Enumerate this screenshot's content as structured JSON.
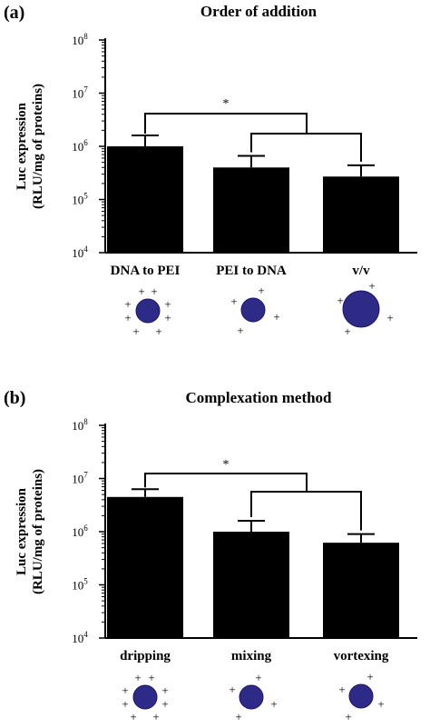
{
  "chart_data": [
    {
      "type": "bar",
      "panel": "(a)",
      "title": "Order of addition",
      "ylabel_line1": "Luc expression",
      "ylabel_line2": "(RLU/mg of proteins)",
      "yscale": "log",
      "ylim": [
        10000,
        100000000
      ],
      "yticks": [
        {
          "base": "10",
          "exp": "4"
        },
        {
          "base": "10",
          "exp": "5"
        },
        {
          "base": "10",
          "exp": "6"
        },
        {
          "base": "10",
          "exp": "7"
        },
        {
          "base": "10",
          "exp": "8"
        }
      ],
      "categories": [
        "DNA to PEI",
        "PEI to DNA",
        "v/v"
      ],
      "values": [
        1000000,
        400000,
        270000
      ],
      "errors_upper": [
        1600000,
        660000,
        440000
      ],
      "significance": "*",
      "particle_size": [
        "medium",
        "small",
        "large"
      ],
      "plus_sign": "+"
    },
    {
      "type": "bar",
      "panel": "(b)",
      "title": "Complexation method",
      "ylabel_line1": "Luc expression",
      "ylabel_line2": "(RLU/mg of proteins)",
      "yscale": "log",
      "ylim": [
        10000,
        100000000
      ],
      "yticks": [
        {
          "base": "10",
          "exp": "4"
        },
        {
          "base": "10",
          "exp": "5"
        },
        {
          "base": "10",
          "exp": "6"
        },
        {
          "base": "10",
          "exp": "7"
        },
        {
          "base": "10",
          "exp": "8"
        }
      ],
      "categories": [
        "dripping",
        "mixing",
        "vortexing"
      ],
      "values": [
        4500000,
        1000000,
        620000
      ],
      "errors_upper": [
        6300000,
        1600000,
        900000
      ],
      "significance": "*",
      "particle_size": [
        "small",
        "small",
        "small"
      ],
      "plus_sign": "+"
    }
  ],
  "colors": {
    "bar": "#000000",
    "particle": "#2e2a87",
    "particle_stroke": "#1a1760"
  }
}
